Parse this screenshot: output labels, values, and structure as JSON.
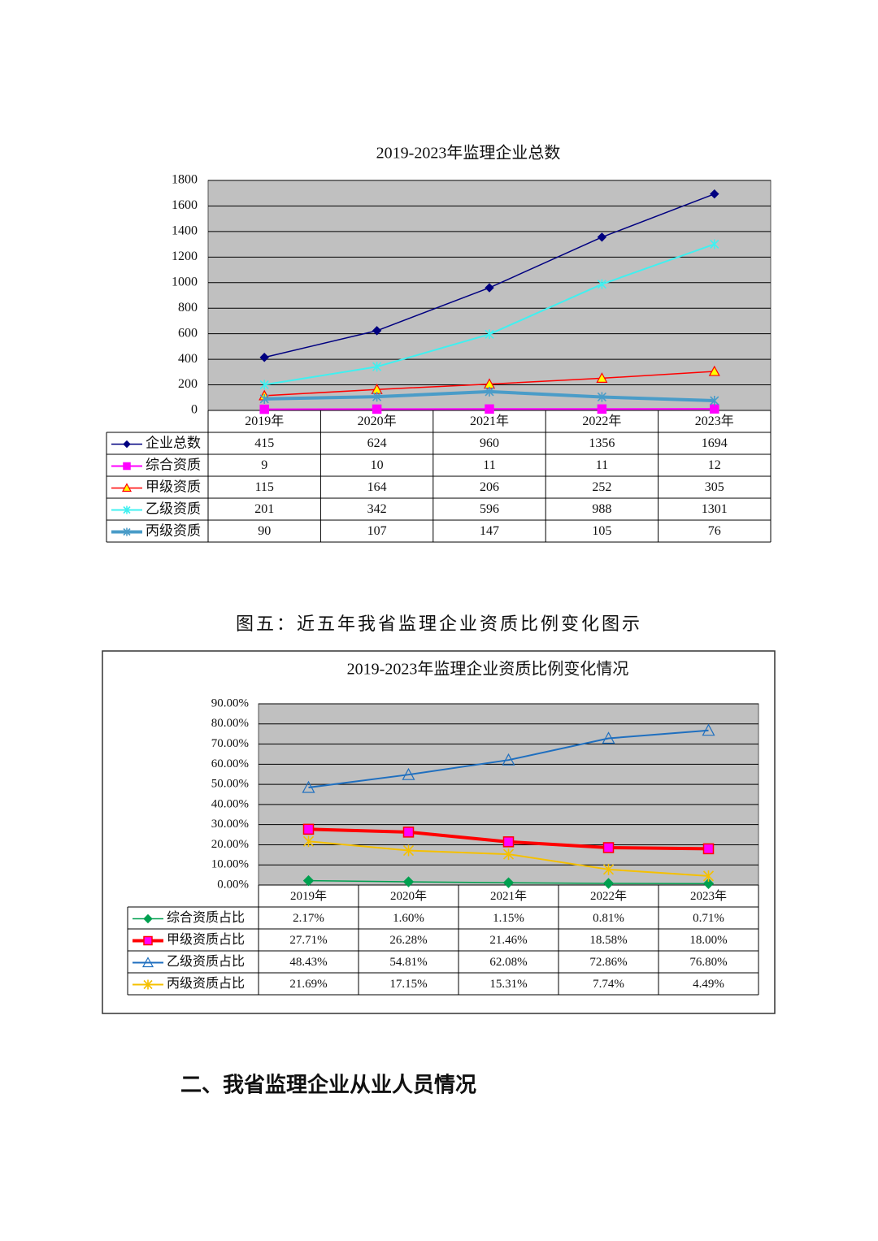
{
  "chart_data": [
    {
      "type": "line",
      "title": "2019-2023年监理企业总数",
      "categories": [
        "2019年",
        "2020年",
        "2021年",
        "2022年",
        "2023年"
      ],
      "ylim": [
        0,
        1800
      ],
      "yticks": [
        0,
        200,
        400,
        600,
        800,
        1000,
        1200,
        1400,
        1600,
        1800
      ],
      "grid": true,
      "plot_background": "#c0c0c0",
      "series": [
        {
          "name": "企业总数",
          "color": "#000080",
          "marker": "diamond",
          "line_width": 1.5,
          "values": [
            415,
            624,
            960,
            1356,
            1694
          ]
        },
        {
          "name": "综合资质",
          "color": "#ff00ff",
          "marker": "square",
          "line_width": 2,
          "values": [
            9,
            10,
            11,
            11,
            12
          ]
        },
        {
          "name": "甲级资质",
          "color": "#ff0000",
          "marker": "triangle",
          "marker_fill": "#ffff00",
          "line_width": 1.5,
          "values": [
            115,
            164,
            206,
            252,
            305
          ]
        },
        {
          "name": "乙级资质",
          "color": "#40f0f0",
          "marker": "star",
          "line_width": 2,
          "values": [
            201,
            342,
            596,
            988,
            1301
          ]
        },
        {
          "name": "丙级资质",
          "color": "#4a9cc8",
          "marker": "star",
          "line_width": 4,
          "values": [
            90,
            107,
            147,
            105,
            76
          ]
        }
      ]
    },
    {
      "type": "line",
      "title": "2019-2023年监理企业资质比例变化情况",
      "categories": [
        "2019年",
        "2020年",
        "2021年",
        "2022年",
        "2023年"
      ],
      "ylim": [
        0,
        90
      ],
      "yticks": [
        {
          "value": 0,
          "label": "0.00%"
        },
        {
          "value": 10,
          "label": "10.00%"
        },
        {
          "value": 20,
          "label": "20.00%"
        },
        {
          "value": 30,
          "label": "30.00%"
        },
        {
          "value": 40,
          "label": "40.00%"
        },
        {
          "value": 50,
          "label": "50.00%"
        },
        {
          "value": 60,
          "label": "60.00%"
        },
        {
          "value": 70,
          "label": "70.00%"
        },
        {
          "value": 80,
          "label": "80.00%"
        },
        {
          "value": 90,
          "label": "90.00%"
        }
      ],
      "grid": true,
      "plot_background": "#c0c0c0",
      "series": [
        {
          "name": "综合资质占比",
          "color": "#00a050",
          "marker": "diamond",
          "line_width": 1.5,
          "values": [
            2.17,
            1.6,
            1.15,
            0.81,
            0.71
          ],
          "value_labels": [
            "2.17%",
            "1.60%",
            "1.15%",
            "0.81%",
            "0.71%"
          ]
        },
        {
          "name": "甲级资质占比",
          "color": "#ff0000",
          "marker": "square",
          "marker_fill": "#ff00ff",
          "line_width": 4,
          "values": [
            27.71,
            26.28,
            21.46,
            18.58,
            18.0
          ],
          "value_labels": [
            "27.71%",
            "26.28%",
            "21.46%",
            "18.58%",
            "18.00%"
          ]
        },
        {
          "name": "乙级资质占比",
          "color": "#1f6fbf",
          "marker": "triangle",
          "marker_fill": "none",
          "line_width": 2,
          "values": [
            48.43,
            54.81,
            62.08,
            72.86,
            76.8
          ],
          "value_labels": [
            "48.43%",
            "54.81%",
            "62.08%",
            "72.86%",
            "76.80%"
          ]
        },
        {
          "name": "丙级资质占比",
          "color": "#f5c000",
          "marker": "star",
          "line_width": 2,
          "values": [
            21.69,
            17.15,
            15.31,
            7.74,
            4.49
          ],
          "value_labels": [
            "21.69%",
            "17.15%",
            "15.31%",
            "7.74%",
            "4.49%"
          ]
        }
      ]
    }
  ],
  "caption": "图五：近五年我省监理企业资质比例变化图示",
  "heading": "二、我省监理企业从业人员情况"
}
